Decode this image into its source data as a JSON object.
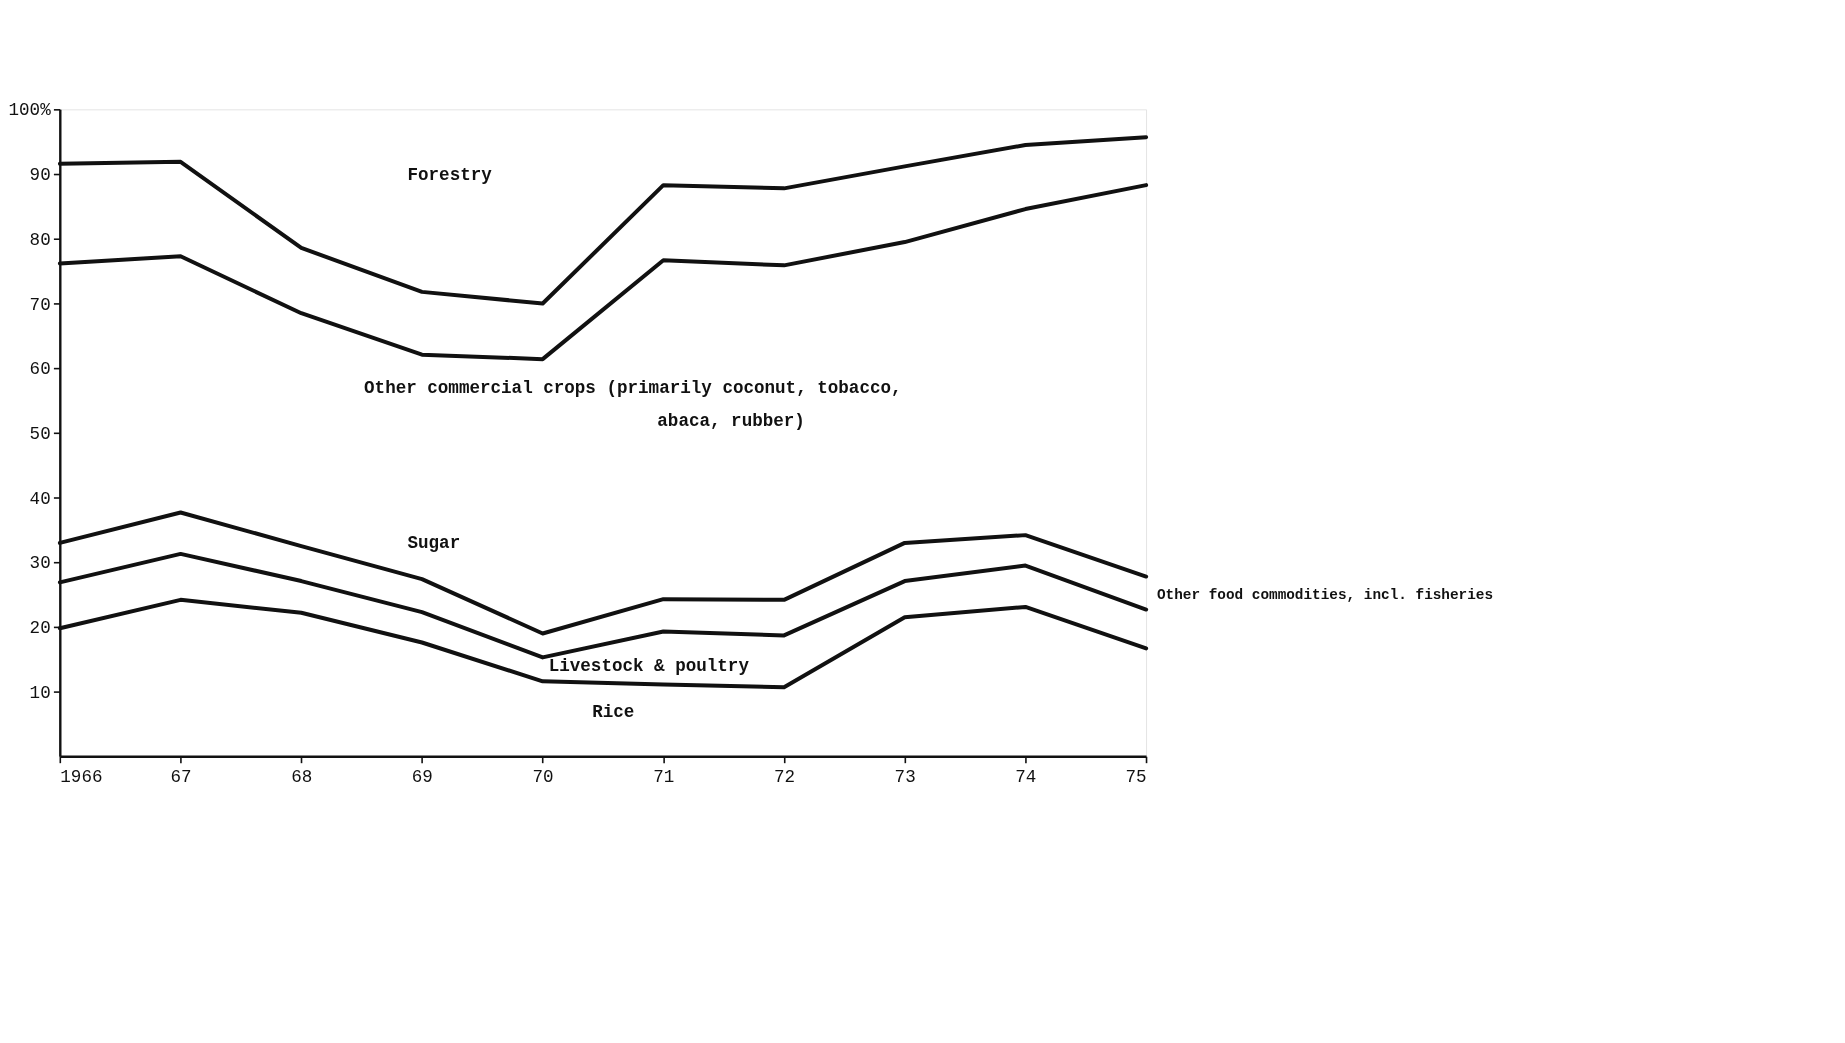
{
  "chart_data": {
    "type": "line",
    "x": [
      1966,
      1967,
      1968,
      1969,
      1970,
      1971,
      1972,
      1973,
      1974,
      1975
    ],
    "series": [
      {
        "color": "#111111",
        "values": [
          91.6,
          91.9,
          78.6,
          71.8,
          70.0,
          88.3,
          87.8,
          91.2,
          94.5,
          95.7
        ]
      },
      {
        "color": "#111111",
        "values": [
          76.2,
          77.3,
          68.5,
          62.1,
          61.4,
          76.7,
          75.9,
          79.5,
          84.6,
          88.3
        ]
      },
      {
        "color": "#111111",
        "values": [
          33.0,
          37.7,
          32.5,
          27.4,
          19.0,
          24.3,
          24.2,
          33.0,
          34.2,
          27.8
        ]
      },
      {
        "color": "#111111",
        "values": [
          26.9,
          31.3,
          27.1,
          22.3,
          15.3,
          19.3,
          18.7,
          27.1,
          29.5,
          22.7
        ]
      },
      {
        "color": "#111111",
        "values": [
          19.8,
          24.2,
          22.2,
          17.6,
          11.6,
          11.1,
          10.7,
          21.5,
          23.1,
          16.7
        ]
      }
    ],
    "xlim": [
      1966,
      1975
    ],
    "xticks": [
      {
        "value": 1966,
        "label": "1966"
      },
      {
        "value": 1967,
        "label": "67"
      },
      {
        "value": 1968,
        "label": "68"
      },
      {
        "value": 1969,
        "label": "69"
      },
      {
        "value": 1970,
        "label": "70"
      },
      {
        "value": 1971,
        "label": "71"
      },
      {
        "value": 1972,
        "label": "72"
      },
      {
        "value": 1973,
        "label": "73"
      },
      {
        "value": 1974,
        "label": "74"
      },
      {
        "value": 1975,
        "label": "75"
      }
    ],
    "ylim": [
      0,
      100
    ],
    "yticks": [
      10,
      20,
      30,
      40,
      50,
      60,
      70,
      80,
      90,
      {
        "value": 100,
        "label": "100%"
      }
    ],
    "annotations": [
      "Forestry",
      "Other commercial crops (primarily coconut, tobacco,",
      "abaca, rubber)",
      "Sugar",
      "Other food commodities, incl. fisheries",
      "Livestock & poultry",
      "Rice"
    ],
    "grid": false,
    "legend": false,
    "marker": "none",
    "line_style": "solid"
  }
}
